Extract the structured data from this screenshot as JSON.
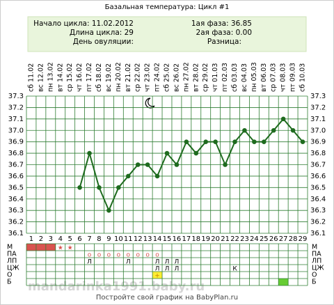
{
  "title": "Базальная температура: Цикл #1",
  "info": {
    "left": [
      "Начало цикла: 11.02.2012",
      "Длина цикла: 29",
      "День овуляции:"
    ],
    "right": [
      "1ая фаза: 36.85",
      "2ая фаза: 0.00",
      "Разница:"
    ]
  },
  "chart_data": {
    "type": "line",
    "x": [
      1,
      2,
      3,
      4,
      5,
      6,
      7,
      8,
      9,
      10,
      11,
      12,
      13,
      14,
      15,
      16,
      17,
      18,
      19,
      20,
      21,
      22,
      23,
      24,
      25,
      26,
      27,
      28,
      29
    ],
    "xlim": [
      0.5,
      29.5
    ],
    "dates": [
      "сб 11.02",
      "вс 12.02",
      "пн 13.02",
      "вт 14.02",
      "ср 15.02",
      "чт 16.02",
      "пт 17.02",
      "сб 18.02",
      "вс 19.02",
      "пн 20.02",
      "вт 21.02",
      "ср 22.02",
      "чт 23.02",
      "пт 24.02",
      "сб 25.02",
      "вс 26.02",
      "пн 27.02",
      "вт 28.02",
      "ср 29.02",
      "чт 01.03",
      "пт 02.03",
      "сб 03.03",
      "вс 04.03",
      "пн 05.03",
      "вт 06.03",
      "ср 07.03",
      "чт 08.03",
      "пт 09.03",
      "сб 10.03"
    ],
    "series": [
      {
        "color": "#1e6b1e",
        "values": [
          null,
          null,
          null,
          null,
          null,
          36.5,
          36.8,
          36.5,
          36.3,
          36.5,
          36.6,
          36.7,
          36.7,
          36.6,
          36.8,
          36.7,
          36.9,
          36.8,
          36.9,
          36.9,
          36.7,
          36.9,
          37.0,
          36.9,
          36.9,
          37.0,
          37.1,
          37.0,
          36.9
        ]
      }
    ],
    "ylim": [
      36.1,
      37.3
    ],
    "yticks": [
      36.1,
      36.2,
      36.3,
      36.4,
      36.5,
      36.6,
      36.7,
      36.8,
      36.9,
      {
        "value": 37,
        "label": "37.0"
      },
      37.1,
      37.2,
      37.3
    ],
    "grid": true
  },
  "table": {
    "rows": [
      {
        "label": "М",
        "fill_days": [
          1,
          2,
          3
        ],
        "fill_color": "#d9534f",
        "symbols": [
          {
            "day": 4,
            "text": "★",
            "color": "#d9534f"
          },
          {
            "day": 5,
            "text": "★",
            "color": "#d9534f"
          }
        ]
      },
      {
        "label": "ПА",
        "symbols": [
          {
            "day": 7,
            "text": "о",
            "color": "#d9534f"
          },
          {
            "day": 8,
            "text": "о",
            "color": "#d9534f"
          },
          {
            "day": 9,
            "text": "о",
            "color": "#d9534f"
          },
          {
            "day": 10,
            "text": "о",
            "color": "#d9534f"
          },
          {
            "day": 11,
            "text": "о",
            "color": "#d9534f"
          },
          {
            "day": 12,
            "text": "о",
            "color": "#d9534f"
          },
          {
            "day": 13,
            "text": "о",
            "color": "#d9534f"
          },
          {
            "day": 14,
            "text": "о",
            "color": "#d9534f"
          }
        ]
      },
      {
        "label": "ЛП",
        "symbols": [
          {
            "day": 7,
            "text": "Л",
            "color": "#000"
          },
          {
            "day": 11,
            "text": "Л",
            "color": "#000"
          },
          {
            "day": 14,
            "text": "Л",
            "color": "#000"
          },
          {
            "day": 15,
            "text": "Л",
            "color": "#000"
          },
          {
            "day": 16,
            "text": "Л",
            "color": "#000"
          }
        ]
      },
      {
        "label": "ЦЖ",
        "symbols": [
          {
            "day": 14,
            "text": "Л",
            "color": "#000"
          },
          {
            "day": 15,
            "text": "Л",
            "color": "#000"
          },
          {
            "day": 16,
            "text": "Л",
            "color": "#000"
          },
          {
            "day": 22,
            "text": "К",
            "color": "#000"
          }
        ]
      },
      {
        "label": "О",
        "fill_days": [
          14
        ],
        "fill_color": "#ffee33",
        "symbols": [
          {
            "day": 14,
            "text": "+",
            "color": "#c08000"
          }
        ]
      },
      {
        "label": "Б",
        "fill_days": [
          27
        ],
        "fill_color": "#66cc33",
        "symbols": []
      }
    ]
  },
  "watermark": "mandarinka1991.baby.ru",
  "footer": "Постройте свой график на BabyPlan.ru"
}
